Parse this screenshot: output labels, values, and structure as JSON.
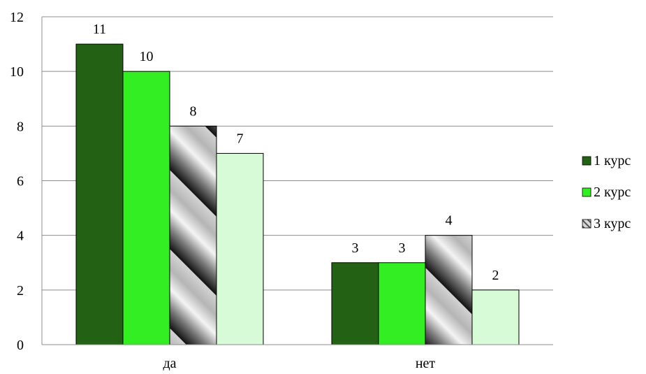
{
  "chart_data": {
    "type": "bar",
    "categories": [
      "да",
      "нет"
    ],
    "series": [
      {
        "name": "1 курс",
        "values": [
          11,
          3
        ],
        "color": "#236115"
      },
      {
        "name": "2 курс",
        "values": [
          10,
          3
        ],
        "color": "#33ee22"
      },
      {
        "name": "3 курс",
        "values": [
          8,
          4
        ],
        "pattern": "diagonal-gray-gradient"
      },
      {
        "name": "",
        "values": [
          7,
          2
        ],
        "color": "#d6fbd6"
      }
    ],
    "ylim": [
      0,
      12
    ],
    "yticks": [
      0,
      2,
      4,
      6,
      8,
      10,
      12
    ],
    "grid": true,
    "legend_position": "right",
    "data_labels": true
  }
}
